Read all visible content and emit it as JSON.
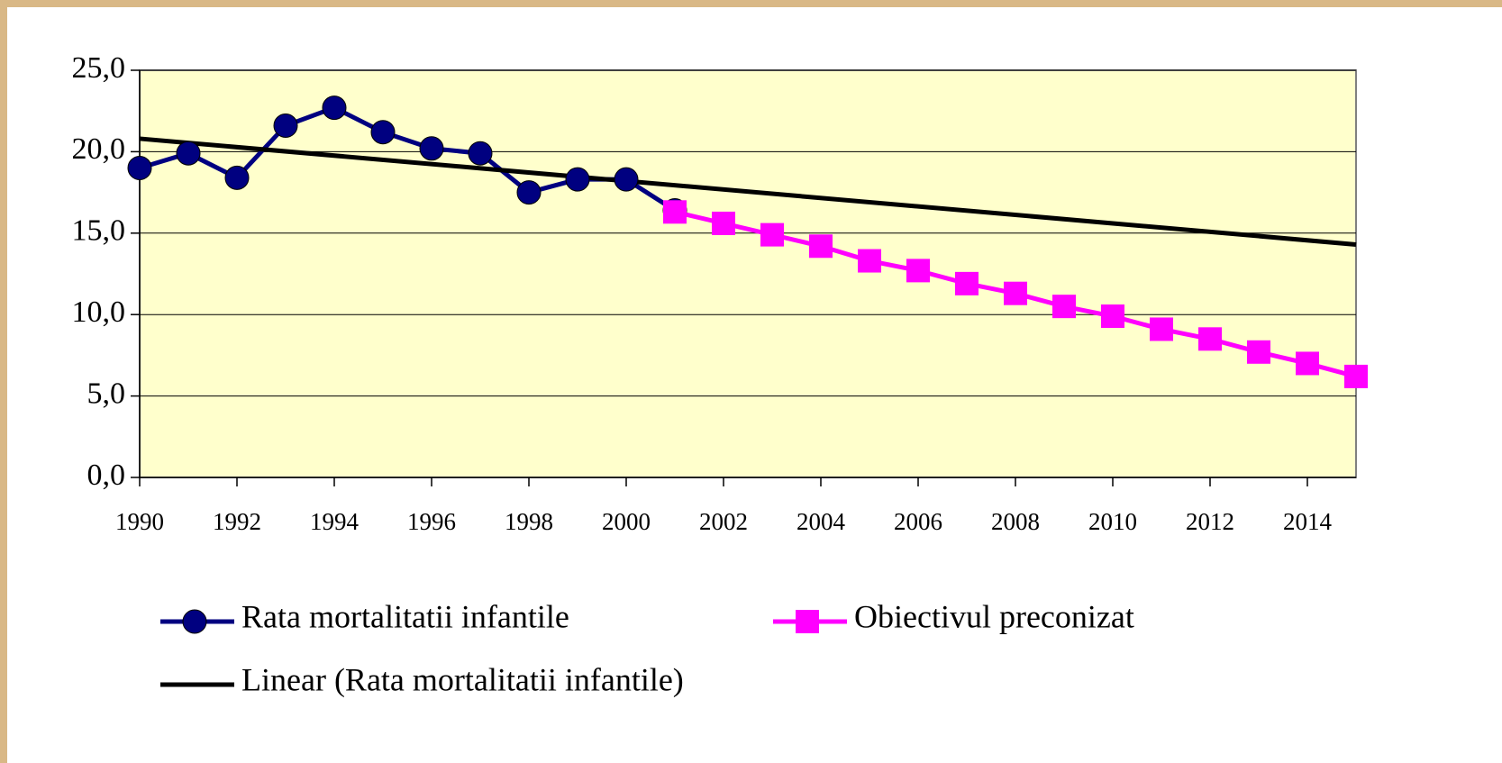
{
  "chart_data": {
    "type": "line",
    "x": [
      1990,
      1991,
      1992,
      1993,
      1994,
      1995,
      1996,
      1997,
      1998,
      1999,
      2000,
      2001,
      2002,
      2003,
      2004,
      2005,
      2006,
      2007,
      2008,
      2009,
      2010,
      2011,
      2012,
      2013,
      2014,
      2015
    ],
    "xlim": [
      1990,
      2015
    ],
    "xticks": [
      1990,
      1992,
      1994,
      1996,
      1998,
      2000,
      2002,
      2004,
      2006,
      2008,
      2010,
      2012,
      2014
    ],
    "ylim": [
      0,
      25
    ],
    "yticks": [
      {
        "value": 0,
        "label": "0,0"
      },
      {
        "value": 5,
        "label": "5,0"
      },
      {
        "value": 10,
        "label": "10,0"
      },
      {
        "value": 15,
        "label": "15,0"
      },
      {
        "value": 20,
        "label": "20,0"
      },
      {
        "value": 25,
        "label": "25,0"
      }
    ],
    "grid": true,
    "legend": "bottom",
    "series": [
      {
        "name": "Rata mortalitatii infantile",
        "color": "#000080",
        "marker": "circle",
        "values": [
          19.0,
          19.9,
          18.4,
          21.6,
          22.7,
          21.2,
          20.2,
          19.9,
          17.5,
          18.3,
          18.3,
          16.4,
          null,
          null,
          null,
          null,
          null,
          null,
          null,
          null,
          null,
          null,
          null,
          null,
          null,
          null
        ]
      },
      {
        "name": "Obiectivul preconizat",
        "color": "#ff00ff",
        "marker": "square",
        "values": [
          null,
          null,
          null,
          null,
          null,
          null,
          null,
          null,
          null,
          null,
          null,
          16.3,
          15.6,
          14.9,
          14.2,
          13.3,
          12.7,
          11.9,
          11.3,
          10.5,
          9.9,
          9.1,
          8.5,
          7.7,
          7.0,
          6.2
        ]
      },
      {
        "name": "Linear (Rata mortalitatii infantile)",
        "color": "#000000",
        "marker": null,
        "x": [
          1990,
          2015
        ],
        "values": [
          20.8,
          14.3
        ]
      }
    ]
  }
}
